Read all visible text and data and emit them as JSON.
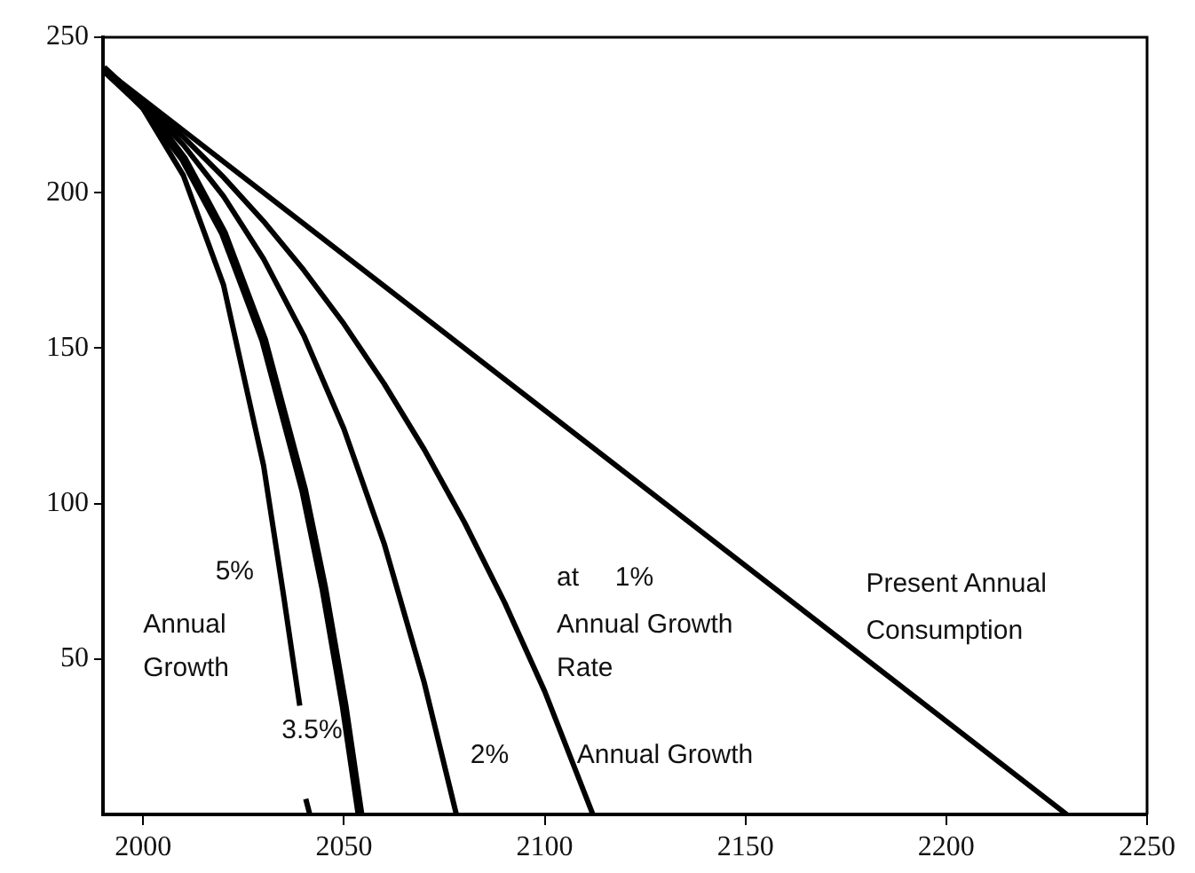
{
  "chart_data": {
    "type": "line",
    "xlim": [
      1990,
      2250
    ],
    "xticks": [
      2000,
      2050,
      2100,
      2150,
      2200,
      2250
    ],
    "ylim": [
      0,
      250
    ],
    "yticks": [
      50,
      100,
      150,
      200,
      250
    ],
    "grid": false,
    "legend": false,
    "marker": "none",
    "line_style": "solid",
    "series": [
      {
        "name": "at 1% Annual Growth Rate",
        "color": "#000000",
        "x": [
          1990,
          2000,
          2010,
          2020,
          2030,
          2040,
          2050,
          2060,
          2070,
          2080,
          2090,
          2100,
          2112
        ],
        "values": [
          240,
          229.5,
          217.9,
          205,
          190.8,
          175.1,
          157.8,
          138.6,
          117.4,
          94,
          68.2,
          39.6,
          0
        ]
      },
      {
        "name": "2% Annual Growth",
        "color": "#000000",
        "x": [
          1990,
          2000,
          2010,
          2020,
          2030,
          2040,
          2050,
          2060,
          2070,
          2078
        ],
        "values": [
          240,
          228.9,
          215.4,
          198.9,
          178.7,
          154.1,
          124,
          87.2,
          42.4,
          0
        ]
      },
      {
        "name": "3.5%",
        "color": "#000000",
        "x": [
          1990,
          2000,
          2010,
          2020,
          2030,
          2040,
          2045,
          2050,
          2054
        ],
        "values": [
          240,
          228,
          211,
          187,
          152.7,
          104.2,
          72.7,
          35.3,
          0
        ]
      },
      {
        "name": "5% Annual Growth",
        "color": "#000000",
        "x": [
          1990,
          2000,
          2010,
          2020,
          2030,
          2035,
          2039,
          2040,
          2040.5,
          2041.5
        ],
        "values": [
          240,
          227,
          205.6,
          170.4,
          112.2,
          70.2,
          35,
          null,
          5,
          0
        ]
      },
      {
        "name": "Present Annual Consumption",
        "color": "#000000",
        "x": [
          1990,
          2230
        ],
        "values": [
          240,
          0
        ]
      }
    ]
  }
}
